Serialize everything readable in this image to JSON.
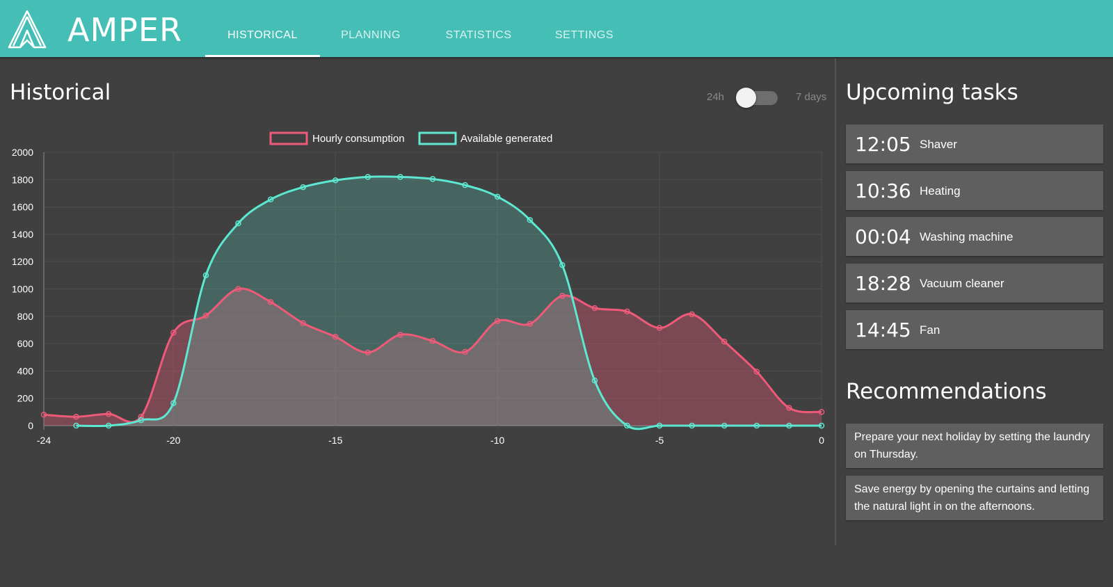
{
  "app": {
    "brand": "AMPER",
    "accent": "#45bfb6",
    "background": "#404040"
  },
  "nav": {
    "tabs": [
      {
        "label": "HISTORICAL",
        "active": true
      },
      {
        "label": "PLANNING",
        "active": false
      },
      {
        "label": "STATISTICS",
        "active": false
      },
      {
        "label": "SETTINGS",
        "active": false
      }
    ]
  },
  "historical": {
    "title": "Historical",
    "toggle": {
      "left_label": "24h",
      "right_label": "7 days",
      "selected": "24h"
    }
  },
  "chart_data": {
    "type": "area",
    "legend": [
      "Hourly consumption",
      "Available generated"
    ],
    "legend_placement": "top-center",
    "xlim": [
      -24,
      0
    ],
    "ylim": [
      0,
      2000
    ],
    "yticks": [
      "2000",
      "1800",
      "1600",
      "1400",
      "1200",
      "1000",
      "800",
      "600",
      "400",
      "200",
      "0"
    ],
    "xticks": [
      "-24",
      "-20",
      "-15",
      "-10",
      "-5",
      "0"
    ],
    "grid": true,
    "series": [
      {
        "name": "Hourly consumption",
        "color": "#ef5a79",
        "x": [
          -24,
          -23,
          -22,
          -21,
          -20,
          -19,
          -18,
          -17,
          -16,
          -15,
          -14,
          -13,
          -12,
          -11,
          -10,
          -9,
          -8,
          -7,
          -6,
          -5,
          -4,
          -3,
          -2,
          -1,
          0
        ],
        "values": [
          80,
          65,
          85,
          65,
          680,
          805,
          1000,
          905,
          750,
          650,
          535,
          665,
          620,
          540,
          765,
          745,
          950,
          860,
          835,
          715,
          815,
          615,
          395,
          130,
          100
        ]
      },
      {
        "name": "Available generated",
        "color": "#5de8d2",
        "x": [
          -23,
          -22,
          -21,
          -20,
          -19,
          -18,
          -17,
          -16,
          -15,
          -14,
          -13,
          -12,
          -11,
          -10,
          -9,
          -8,
          -7,
          -6,
          -5,
          -4,
          -3,
          -2,
          -1,
          0
        ],
        "values": [
          0,
          0,
          40,
          165,
          1100,
          1480,
          1655,
          1745,
          1795,
          1820,
          1820,
          1805,
          1760,
          1675,
          1505,
          1175,
          330,
          0,
          0,
          0,
          0,
          0,
          0,
          0
        ]
      }
    ]
  },
  "upcoming": {
    "title": "Upcoming tasks",
    "tasks": [
      {
        "time": "12:05",
        "name": "Shaver"
      },
      {
        "time": "10:36",
        "name": "Heating"
      },
      {
        "time": "00:04",
        "name": "Washing machine"
      },
      {
        "time": "18:28",
        "name": "Vacuum cleaner"
      },
      {
        "time": "14:45",
        "name": "Fan"
      }
    ]
  },
  "recommendations": {
    "title": "Recommendations",
    "items": [
      "Prepare your next holiday by setting the laundry on Thursday.",
      "Save energy by opening the curtains and letting the natural light in on the afternoons."
    ]
  }
}
